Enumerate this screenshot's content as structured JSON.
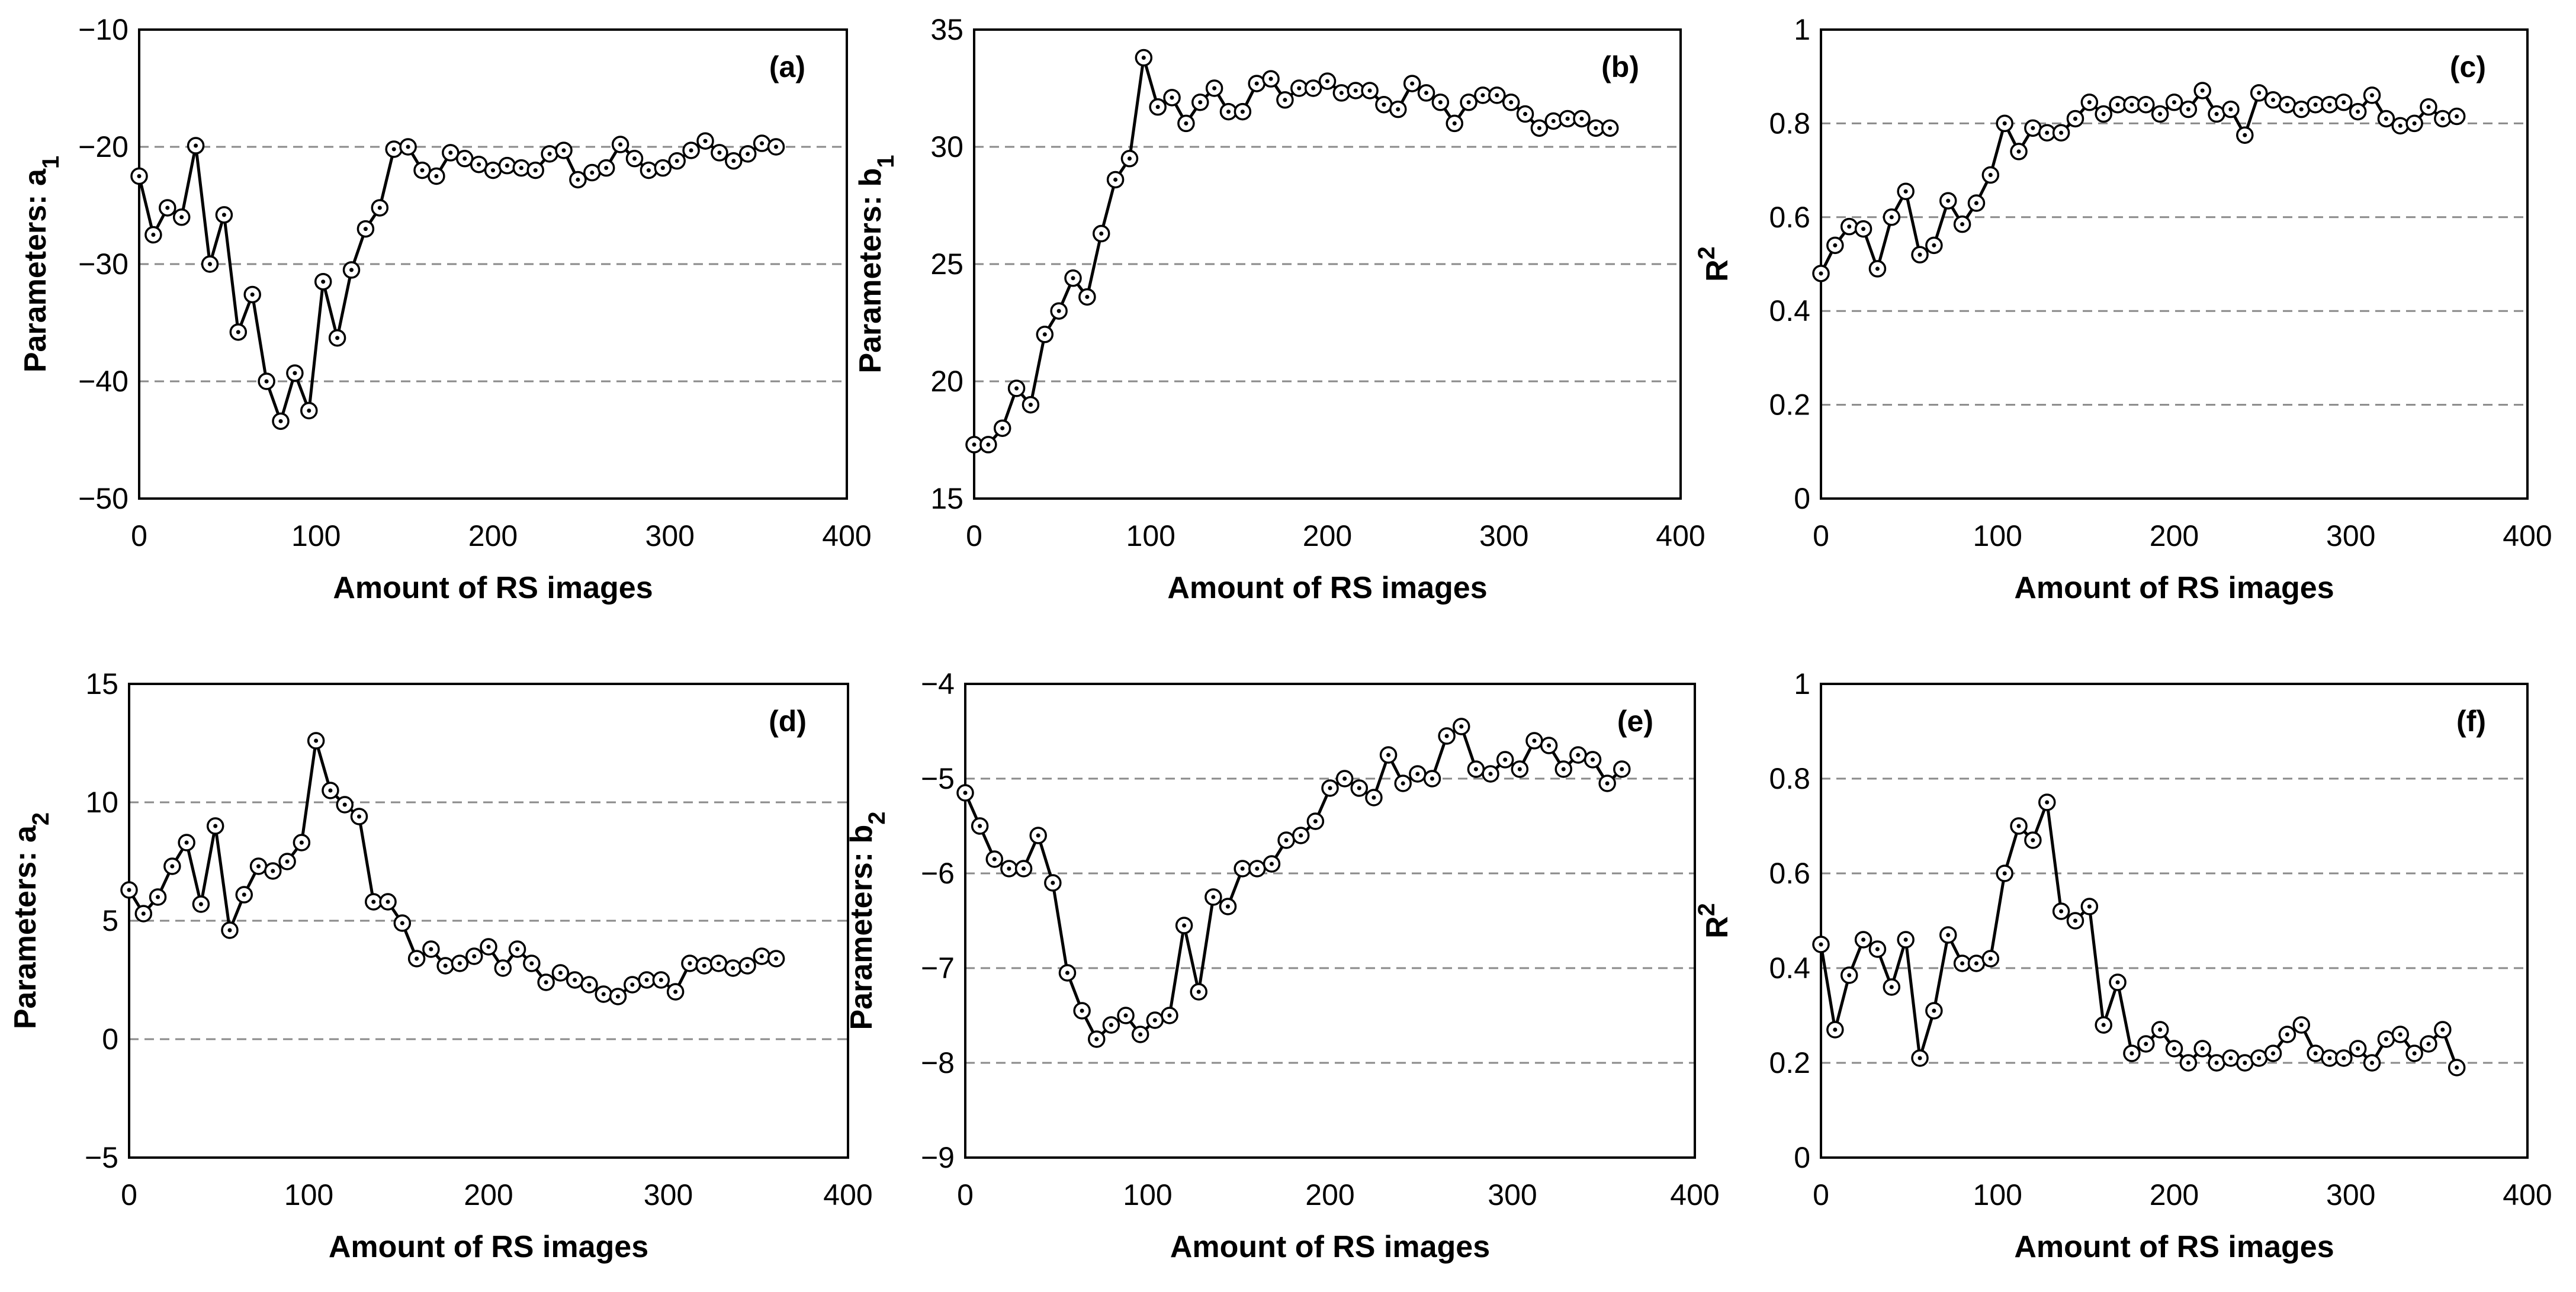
{
  "chart_data": [
    {
      "type": "line",
      "panel_label": "(a)",
      "ylabel": "Parameters: a",
      "ylabel_sub": "1",
      "xlabel": "Amount of RS images",
      "xlim": [
        0,
        400
      ],
      "ylim": [
        -50,
        -10
      ],
      "xticks": [
        "0",
        "100",
        "200",
        "300",
        "400"
      ],
      "yticks": [
        "−50",
        "−40",
        "−30",
        "−20",
        "−10"
      ],
      "ytick_values": [
        -50,
        -40,
        -30,
        -20,
        -10
      ],
      "grid_y": [
        -40,
        -30,
        -20
      ],
      "x": [
        0,
        8,
        16,
        24,
        32,
        40,
        48,
        56,
        64,
        72,
        80,
        88,
        96,
        104,
        112,
        120,
        128,
        136,
        144,
        152,
        160,
        168,
        176,
        184,
        192,
        200,
        208,
        216,
        224,
        232,
        240,
        248,
        256,
        264,
        272,
        280,
        288,
        296,
        304,
        312,
        320,
        328,
        336,
        344,
        352,
        360
      ],
      "values": [
        -22.5,
        -27.5,
        -25.2,
        -26,
        -19.9,
        -30,
        -25.8,
        -35.8,
        -32.6,
        -40,
        -43.4,
        -39.3,
        -42.5,
        -31.5,
        -36.3,
        -30.5,
        -27,
        -25.2,
        -20.2,
        -20,
        -22,
        -22.5,
        -20.5,
        -21,
        -21.5,
        -22,
        -21.6,
        -21.8,
        -22,
        -20.6,
        -20.3,
        -22.8,
        -22.2,
        -21.8,
        -19.8,
        -21,
        -22,
        -21.8,
        -21.2,
        -20.3,
        -19.5,
        -20.5,
        -21.2,
        -20.6,
        -19.7,
        -20
      ]
    },
    {
      "type": "line",
      "panel_label": "(b)",
      "ylabel": "Parameters: b",
      "ylabel_sub": "1",
      "xlabel": "Amount of RS images",
      "xlim": [
        0,
        400
      ],
      "ylim": [
        15,
        35
      ],
      "xticks": [
        "0",
        "100",
        "200",
        "300",
        "400"
      ],
      "yticks": [
        "15",
        "20",
        "25",
        "30",
        "35"
      ],
      "ytick_values": [
        15,
        20,
        25,
        30,
        35
      ],
      "grid_y": [
        20,
        25,
        30
      ],
      "x": [
        0,
        8,
        16,
        24,
        32,
        40,
        48,
        56,
        64,
        72,
        80,
        88,
        96,
        104,
        112,
        120,
        128,
        136,
        144,
        152,
        160,
        168,
        176,
        184,
        192,
        200,
        208,
        216,
        224,
        232,
        240,
        248,
        256,
        264,
        272,
        280,
        288,
        296,
        304,
        312,
        320,
        328,
        336,
        344,
        352,
        360
      ],
      "values": [
        17.3,
        17.3,
        18,
        19.7,
        19,
        22,
        23,
        24.4,
        23.6,
        26.3,
        28.6,
        29.5,
        33.8,
        31.7,
        32.1,
        31,
        31.9,
        32.5,
        31.5,
        31.5,
        32.7,
        32.9,
        32,
        32.5,
        32.5,
        32.8,
        32.3,
        32.4,
        32.4,
        31.8,
        31.6,
        32.7,
        32.3,
        31.9,
        31,
        31.9,
        32.2,
        32.2,
        31.9,
        31.4,
        30.8,
        31.1,
        31.2,
        31.2,
        30.8,
        30.8
      ]
    },
    {
      "type": "line",
      "panel_label": "(c)",
      "ylabel": "R",
      "ylabel_sup": "2",
      "xlabel": "Amount of RS images",
      "xlim": [
        0,
        400
      ],
      "ylim": [
        0,
        1
      ],
      "xticks": [
        "0",
        "100",
        "200",
        "300",
        "400"
      ],
      "yticks": [
        "0",
        "0.2",
        "0.4",
        "0.6",
        "0.8",
        "1"
      ],
      "ytick_values": [
        0,
        0.2,
        0.4,
        0.6,
        0.8,
        1
      ],
      "grid_y": [
        0.2,
        0.4,
        0.6,
        0.8
      ],
      "x": [
        0,
        8,
        16,
        24,
        32,
        40,
        48,
        56,
        64,
        72,
        80,
        88,
        96,
        104,
        112,
        120,
        128,
        136,
        144,
        152,
        160,
        168,
        176,
        184,
        192,
        200,
        208,
        216,
        224,
        232,
        240,
        248,
        256,
        264,
        272,
        280,
        288,
        296,
        304,
        312,
        320,
        328,
        336,
        344,
        352,
        360
      ],
      "values": [
        0.48,
        0.54,
        0.58,
        0.575,
        0.49,
        0.6,
        0.655,
        0.52,
        0.54,
        0.635,
        0.585,
        0.63,
        0.69,
        0.8,
        0.74,
        0.79,
        0.78,
        0.78,
        0.81,
        0.845,
        0.82,
        0.84,
        0.84,
        0.84,
        0.82,
        0.845,
        0.83,
        0.87,
        0.82,
        0.83,
        0.775,
        0.865,
        0.85,
        0.84,
        0.83,
        0.84,
        0.84,
        0.845,
        0.825,
        0.86,
        0.81,
        0.795,
        0.8,
        0.835,
        0.81,
        0.815
      ]
    },
    {
      "type": "line",
      "panel_label": "(d)",
      "ylabel": "Parameters: a",
      "ylabel_sub": "2",
      "xlabel": "Amount of RS images",
      "xlim": [
        0,
        400
      ],
      "ylim": [
        -5,
        15
      ],
      "xticks": [
        "0",
        "100",
        "200",
        "300",
        "400"
      ],
      "yticks": [
        "−5",
        "0",
        "5",
        "10",
        "15"
      ],
      "ytick_values": [
        -5,
        0,
        5,
        10,
        15
      ],
      "grid_y": [
        0,
        5,
        10
      ],
      "x": [
        0,
        8,
        16,
        24,
        32,
        40,
        48,
        56,
        64,
        72,
        80,
        88,
        96,
        104,
        112,
        120,
        128,
        136,
        144,
        152,
        160,
        168,
        176,
        184,
        192,
        200,
        208,
        216,
        224,
        232,
        240,
        248,
        256,
        264,
        272,
        280,
        288,
        296,
        304,
        312,
        320,
        328,
        336,
        344,
        352,
        360
      ],
      "values": [
        6.3,
        5.3,
        6,
        7.3,
        8.3,
        5.7,
        9,
        4.6,
        6.1,
        7.3,
        7.1,
        7.5,
        8.3,
        12.6,
        10.5,
        9.9,
        9.4,
        5.8,
        5.8,
        4.9,
        3.4,
        3.8,
        3.1,
        3.2,
        3.5,
        3.9,
        3,
        3.8,
        3.2,
        2.4,
        2.8,
        2.5,
        2.3,
        1.9,
        1.8,
        2.3,
        2.5,
        2.5,
        2,
        3.2,
        3.1,
        3.2,
        3,
        3.1,
        3.5,
        3.4
      ]
    },
    {
      "type": "line",
      "panel_label": "(e)",
      "ylabel": "Parameters: b",
      "ylabel_sub": "2",
      "xlabel": "Amount of RS images",
      "xlim": [
        0,
        400
      ],
      "ylim": [
        -9,
        -4
      ],
      "xticks": [
        "0",
        "100",
        "200",
        "300",
        "400"
      ],
      "yticks": [
        "−9",
        "−8",
        "−7",
        "−6",
        "−5",
        "−4"
      ],
      "ytick_values": [
        -9,
        -8,
        -7,
        -6,
        -5,
        -4
      ],
      "grid_y": [
        -8,
        -7,
        -6,
        -5
      ],
      "x": [
        0,
        8,
        16,
        24,
        32,
        40,
        48,
        56,
        64,
        72,
        80,
        88,
        96,
        104,
        112,
        120,
        128,
        136,
        144,
        152,
        160,
        168,
        176,
        184,
        192,
        200,
        208,
        216,
        224,
        232,
        240,
        248,
        256,
        264,
        272,
        280,
        288,
        296,
        304,
        312,
        320,
        328,
        336,
        344,
        352,
        360
      ],
      "values": [
        -5.15,
        -5.5,
        -5.85,
        -5.95,
        -5.95,
        -5.6,
        -6.1,
        -7.05,
        -7.45,
        -7.75,
        -7.6,
        -7.5,
        -7.7,
        -7.55,
        -7.5,
        -6.55,
        -7.25,
        -6.25,
        -6.35,
        -5.95,
        -5.95,
        -5.9,
        -5.65,
        -5.6,
        -5.45,
        -5.1,
        -5,
        -5.1,
        -5.2,
        -4.75,
        -5.05,
        -4.95,
        -5,
        -4.55,
        -4.45,
        -4.9,
        -4.95,
        -4.8,
        -4.9,
        -4.6,
        -4.65,
        -4.9,
        -4.75,
        -4.8,
        -5.05,
        -4.9
      ]
    },
    {
      "type": "line",
      "panel_label": "(f)",
      "ylabel": "R",
      "ylabel_sup": "2",
      "xlabel": "Amount of RS images",
      "xlim": [
        0,
        400
      ],
      "ylim": [
        0,
        1
      ],
      "xticks": [
        "0",
        "100",
        "200",
        "300",
        "400"
      ],
      "yticks": [
        "0",
        "0.2",
        "0.4",
        "0.6",
        "0.8",
        "1"
      ],
      "ytick_values": [
        0,
        0.2,
        0.4,
        0.6,
        0.8,
        1
      ],
      "grid_y": [
        0.2,
        0.4,
        0.6,
        0.8
      ],
      "x": [
        0,
        8,
        16,
        24,
        32,
        40,
        48,
        56,
        64,
        72,
        80,
        88,
        96,
        104,
        112,
        120,
        128,
        136,
        144,
        152,
        160,
        168,
        176,
        184,
        192,
        200,
        208,
        216,
        224,
        232,
        240,
        248,
        256,
        264,
        272,
        280,
        288,
        296,
        304,
        312,
        320,
        328,
        336,
        344,
        352,
        360
      ],
      "values": [
        0.45,
        0.27,
        0.385,
        0.46,
        0.44,
        0.36,
        0.46,
        0.21,
        0.31,
        0.47,
        0.41,
        0.41,
        0.42,
        0.6,
        0.7,
        0.67,
        0.75,
        0.52,
        0.5,
        0.53,
        0.28,
        0.37,
        0.22,
        0.24,
        0.27,
        0.23,
        0.2,
        0.23,
        0.2,
        0.21,
        0.2,
        0.21,
        0.22,
        0.26,
        0.28,
        0.22,
        0.21,
        0.21,
        0.23,
        0.2,
        0.25,
        0.26,
        0.22,
        0.24,
        0.27,
        0.19
      ]
    }
  ]
}
